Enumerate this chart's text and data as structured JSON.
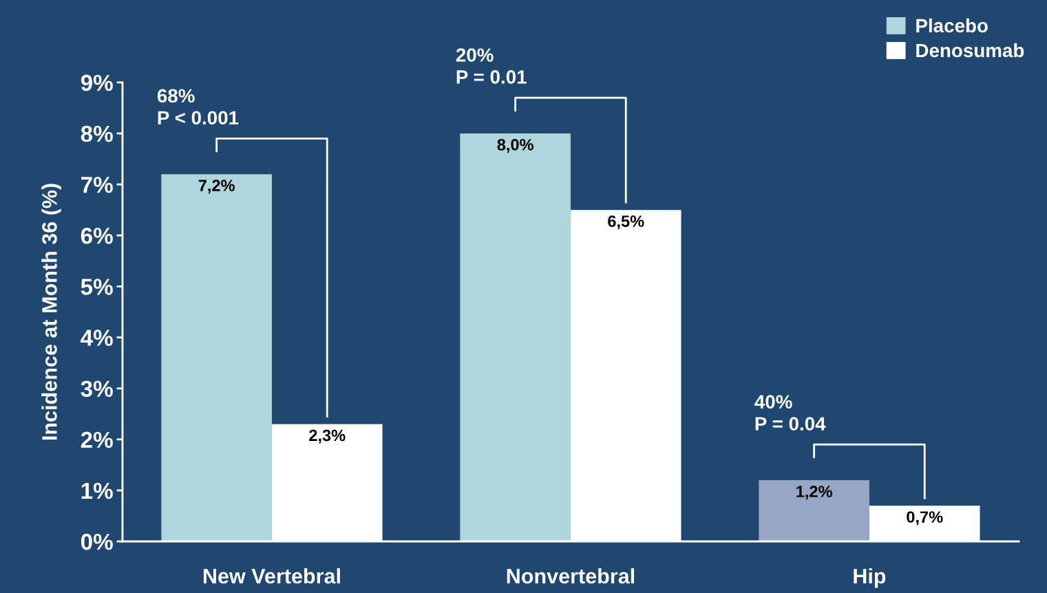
{
  "chart_data": {
    "type": "bar",
    "ylabel": "Incidence at Month 36 (%)",
    "categories": [
      "New Vertebral",
      "Nonvertebral",
      "Hip"
    ],
    "series": [
      {
        "name": "Placebo",
        "color": "#aed6dc",
        "colors": [
          "#aed6dc",
          "#aed6dc",
          "#97a6c4"
        ],
        "values": [
          7.2,
          8.0,
          1.2
        ],
        "value_labels": [
          "7,2%",
          "8,0%",
          "1,2%"
        ]
      },
      {
        "name": "Denosumab",
        "color": "#ffffff",
        "values": [
          2.3,
          6.5,
          0.7
        ],
        "value_labels": [
          "2,3%",
          "6,5%",
          "0,7%"
        ]
      }
    ],
    "ylim": [
      0,
      9
    ],
    "yticks": [
      {
        "value": 0,
        "label": "0%"
      },
      {
        "value": 1,
        "label": "1%"
      },
      {
        "value": 2,
        "label": "2%"
      },
      {
        "value": 3,
        "label": "3%"
      },
      {
        "value": 4,
        "label": "4%"
      },
      {
        "value": 5,
        "label": "5%"
      },
      {
        "value": 6,
        "label": "6%"
      },
      {
        "value": 7,
        "label": "7%"
      },
      {
        "value": 8,
        "label": "8%"
      },
      {
        "value": 9,
        "label": "9%"
      }
    ],
    "annotations": [
      "68%\nP < 0.001",
      "20%\nP = 0.01",
      "40%\nP = 0.04"
    ],
    "grid": false,
    "legend": "top right"
  }
}
